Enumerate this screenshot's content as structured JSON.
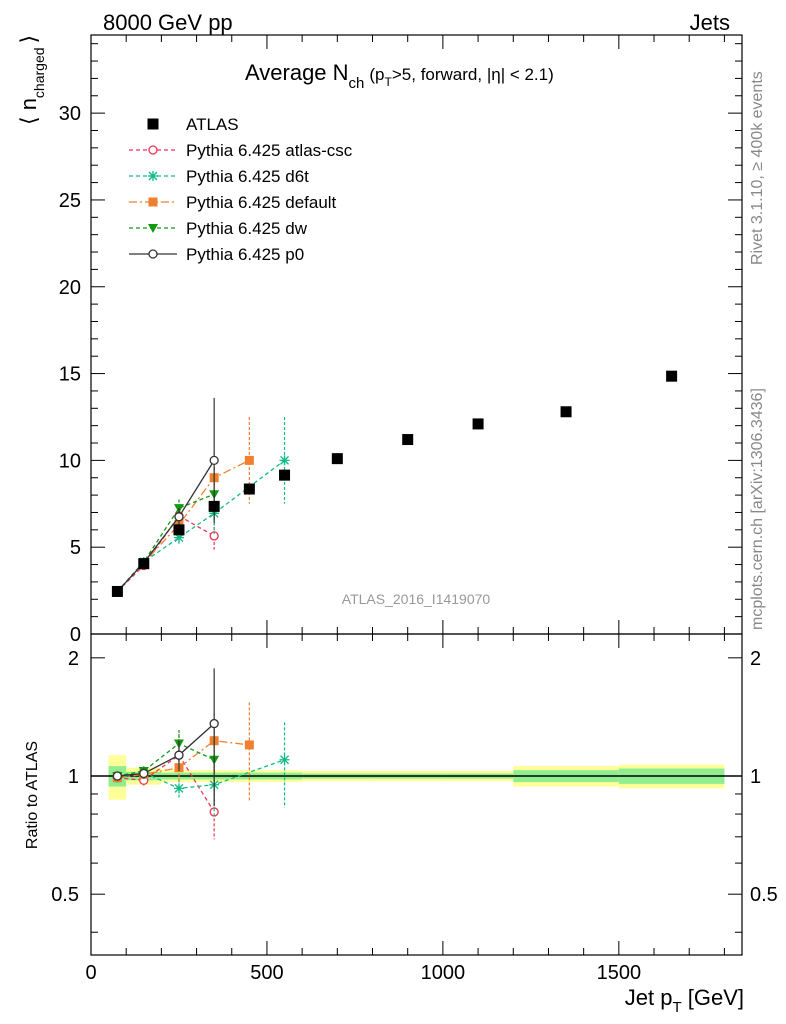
{
  "header": {
    "left": "8000 GeV pp",
    "right": "Jets"
  },
  "side_texts": {
    "rivet": "Rivet 3.1.10, ≥ 400k events",
    "mcplots": "mcplots.cern.ch [arXiv:1306.3436]"
  },
  "watermark": "ATLAS_2016_I1419070",
  "chart_data": [
    {
      "type": "scatter",
      "title_main": "Average N",
      "title_sub": "ch",
      "title_rest": "(p",
      "title_rest_sub": "T",
      "title_rest2": ">5, forward, |η| < 2.1)",
      "ylabel_main": "⟨ n",
      "ylabel_sub": "charged",
      "ylabel_close": "⟩",
      "xlim": [
        0,
        1850
      ],
      "ylim": [
        0,
        34.5
      ],
      "y_ticks": [
        0,
        5,
        10,
        15,
        20,
        25,
        30
      ],
      "grid": false,
      "legend_position": "top-left",
      "data": {
        "name": "ATLAS",
        "x": [
          75,
          150,
          250,
          350,
          450,
          550,
          700,
          900,
          1100,
          1350,
          1650
        ],
        "y": [
          2.45,
          4.05,
          6.0,
          7.35,
          8.35,
          9.15,
          10.1,
          11.2,
          12.1,
          12.8,
          14.85
        ]
      },
      "series": [
        {
          "name": "Pythia 6.425 atlas-csc",
          "color": "#ee3355",
          "marker": "open-circle",
          "dash": "4,3",
          "x": [
            75,
            150,
            250,
            350
          ],
          "y": [
            2.45,
            3.95,
            6.8,
            5.65
          ],
          "yerr": [
            0.05,
            0.1,
            0.4,
            0.8
          ]
        },
        {
          "name": "Pythia 6.425 d6t",
          "color": "#11bb88",
          "marker": "star",
          "dash": "4,3",
          "x": [
            75,
            150,
            250,
            350,
            550
          ],
          "y": [
            2.45,
            4.15,
            5.55,
            6.95,
            10.0
          ],
          "yerr": [
            0.05,
            0.1,
            0.4,
            1.2,
            2.5
          ]
        },
        {
          "name": "Pythia 6.425 default",
          "color": "#f08030",
          "marker": "square",
          "dash": "8,3,2,3",
          "x": [
            75,
            150,
            250,
            350,
            450
          ],
          "y": [
            2.45,
            4.1,
            6.3,
            9.0,
            10.0
          ],
          "yerr": [
            0.05,
            0.1,
            0.5,
            1.5,
            2.5
          ]
        },
        {
          "name": "Pythia 6.425 dw",
          "color": "#119911",
          "marker": "triangle-down",
          "dash": "4,3",
          "x": [
            75,
            150,
            250,
            350
          ],
          "y": [
            2.45,
            4.15,
            7.25,
            8.05
          ],
          "yerr": [
            0.05,
            0.1,
            0.5,
            1.5
          ]
        },
        {
          "name": "Pythia 6.425 p0",
          "color": "#333333",
          "marker": "open-circle",
          "dash": "",
          "x": [
            75,
            150,
            250,
            350
          ],
          "y": [
            2.45,
            4.1,
            6.75,
            10.0
          ],
          "yerr": [
            0.05,
            0.1,
            0.5,
            3.6
          ]
        }
      ]
    },
    {
      "type": "scatter",
      "ylabel": "Ratio to ATLAS",
      "xlabel_main": "Jet p",
      "xlabel_sub": "T",
      "xlabel_rest": " [GeV]",
      "xlim": [
        0,
        1850
      ],
      "ylim": [
        0.35,
        2.3
      ],
      "log_y": true,
      "y_ticks": [
        0.5,
        1,
        2
      ],
      "y_tick_labels": [
        "0.5",
        "1",
        "2"
      ],
      "x_ticks": [
        0,
        500,
        1000,
        1500
      ],
      "x_tick_labels": [
        "0",
        "500",
        "1000",
        "1500"
      ],
      "bands": {
        "bins": [
          [
            50,
            100
          ],
          [
            100,
            200
          ],
          [
            200,
            300
          ],
          [
            300,
            400
          ],
          [
            400,
            500
          ],
          [
            500,
            600
          ],
          [
            600,
            800
          ],
          [
            800,
            1000
          ],
          [
            1000,
            1200
          ],
          [
            1200,
            1500
          ],
          [
            1500,
            1800
          ]
        ],
        "yellow_half": [
          0.13,
          0.05,
          0.035,
          0.035,
          0.035,
          0.035,
          0.03,
          0.03,
          0.03,
          0.06,
          0.07
        ],
        "green_half": [
          0.06,
          0.025,
          0.02,
          0.02,
          0.02,
          0.02,
          0.015,
          0.015,
          0.015,
          0.035,
          0.045
        ]
      },
      "series": [
        {
          "name": "Pythia 6.425 atlas-csc",
          "x": [
            75,
            150,
            250,
            350
          ],
          "y": [
            0.99,
            0.975,
            1.13,
            0.81
          ],
          "yerr": [
            0.02,
            0.03,
            0.15,
            0.12
          ]
        },
        {
          "name": "Pythia 6.425 d6t",
          "x": [
            75,
            150,
            250,
            350,
            550
          ],
          "y": [
            0.99,
            1.02,
            0.93,
            0.95,
            1.1
          ],
          "yerr": [
            0.02,
            0.03,
            0.05,
            0.16,
            0.27
          ]
        },
        {
          "name": "Pythia 6.425 default",
          "x": [
            75,
            150,
            250,
            350,
            450
          ],
          "y": [
            0.99,
            1.01,
            1.05,
            1.23,
            1.2
          ],
          "yerr": [
            0.02,
            0.03,
            0.09,
            0.22,
            0.34
          ]
        },
        {
          "name": "Pythia 6.425 dw",
          "x": [
            75,
            150,
            250,
            350
          ],
          "y": [
            1.0,
            1.03,
            1.21,
            1.1
          ],
          "yerr": [
            0.02,
            0.03,
            0.1,
            0.21
          ]
        },
        {
          "name": "Pythia 6.425 p0",
          "x": [
            75,
            150,
            250,
            350
          ],
          "y": [
            1.0,
            1.015,
            1.13,
            1.36
          ],
          "yerr": [
            0.02,
            0.03,
            0.1,
            0.52
          ]
        }
      ]
    }
  ]
}
